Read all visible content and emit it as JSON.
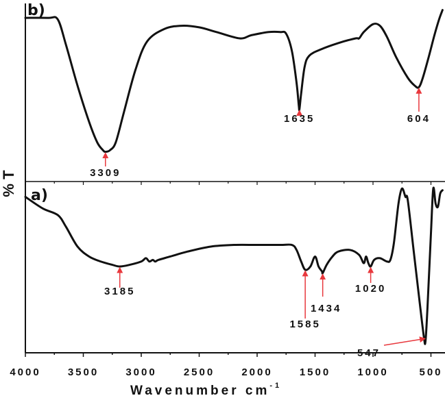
{
  "chart_data": {
    "type": "line",
    "title": "",
    "xlabel": "Wavenumber cm",
    "xlabel_superscript": "-1",
    "ylabel": "% T",
    "xlim": [
      4000,
      400
    ],
    "x_reversed": true,
    "x_ticks": [
      4000,
      3500,
      3000,
      2500,
      2000,
      1500,
      1000,
      500
    ],
    "x_tick_labels": [
      "4000",
      "3500",
      "3000",
      "2500",
      "2000",
      "1500",
      "1000",
      "500"
    ],
    "grid": false,
    "legend": null,
    "panels": [
      {
        "label": "b)",
        "position": "top",
        "annotated_peaks": [
          {
            "wavenumber": 3309,
            "label": "3309"
          },
          {
            "wavenumber": 1635,
            "label": "1635"
          },
          {
            "wavenumber": 604,
            "label": "604"
          }
        ],
        "series": [
          {
            "name": "b",
            "x": [
              4000,
              3800,
              3720,
              3650,
              3550,
              3450,
              3380,
              3330,
              3309,
              3270,
              3220,
              3150,
              3050,
              2950,
              2800,
              2650,
              2500,
              2350,
              2150,
              2050,
              1900,
              1800,
              1750,
              1700,
              1660,
              1640,
              1635,
              1620,
              1590,
              1550,
              1450,
              1300,
              1150,
              1120,
              1080,
              1000,
              940,
              880,
              800,
              700,
              640,
              604,
              570,
              520,
              470,
              430,
              400
            ],
            "y_relative": [
              0.93,
              0.93,
              0.92,
              0.76,
              0.5,
              0.27,
              0.14,
              0.09,
              0.08,
              0.09,
              0.14,
              0.33,
              0.6,
              0.78,
              0.86,
              0.88,
              0.87,
              0.84,
              0.8,
              0.82,
              0.84,
              0.84,
              0.83,
              0.72,
              0.52,
              0.37,
              0.35,
              0.45,
              0.62,
              0.69,
              0.73,
              0.77,
              0.8,
              0.8,
              0.84,
              0.89,
              0.88,
              0.81,
              0.68,
              0.55,
              0.5,
              0.49,
              0.55,
              0.68,
              0.82,
              0.92,
              0.98
            ]
          }
        ]
      },
      {
        "label": "a)",
        "position": "bottom",
        "annotated_peaks": [
          {
            "wavenumber": 3185,
            "label": "3185"
          },
          {
            "wavenumber": 1585,
            "label": "1585"
          },
          {
            "wavenumber": 1434,
            "label": "1434"
          },
          {
            "wavenumber": 1020,
            "label": "1020"
          },
          {
            "wavenumber": 547,
            "label": "547"
          }
        ],
        "series": [
          {
            "name": "a",
            "x": [
              4000,
              3850,
              3720,
              3650,
              3550,
              3450,
              3350,
              3250,
              3185,
              3100,
              3000,
              2960,
              2930,
              2900,
              2880,
              2850,
              2750,
              2600,
              2400,
              2200,
              2000,
              1800,
              1700,
              1660,
              1620,
              1585,
              1540,
              1500,
              1470,
              1440,
              1434,
              1400,
              1350,
              1300,
              1200,
              1120,
              1080,
              1060,
              1040,
              1020,
              990,
              940,
              880,
              850,
              820,
              780,
              750,
              720,
              700,
              650,
              600,
              560,
              547,
              530,
              500,
              480,
              460,
              440,
              420,
              400
            ],
            "y_relative": [
              0.92,
              0.85,
              0.81,
              0.74,
              0.62,
              0.56,
              0.53,
              0.51,
              0.5,
              0.51,
              0.53,
              0.55,
              0.53,
              0.54,
              0.53,
              0.54,
              0.56,
              0.59,
              0.62,
              0.63,
              0.63,
              0.63,
              0.63,
              0.6,
              0.53,
              0.48,
              0.5,
              0.56,
              0.5,
              0.47,
              0.46,
              0.51,
              0.56,
              0.59,
              0.6,
              0.57,
              0.52,
              0.56,
              0.52,
              0.5,
              0.54,
              0.55,
              0.53,
              0.54,
              0.64,
              0.88,
              0.97,
              0.92,
              0.9,
              0.6,
              0.3,
              0.07,
              0.05,
              0.25,
              0.7,
              0.97,
              0.88,
              0.86,
              0.94,
              0.96
            ]
          }
        ]
      }
    ]
  }
}
